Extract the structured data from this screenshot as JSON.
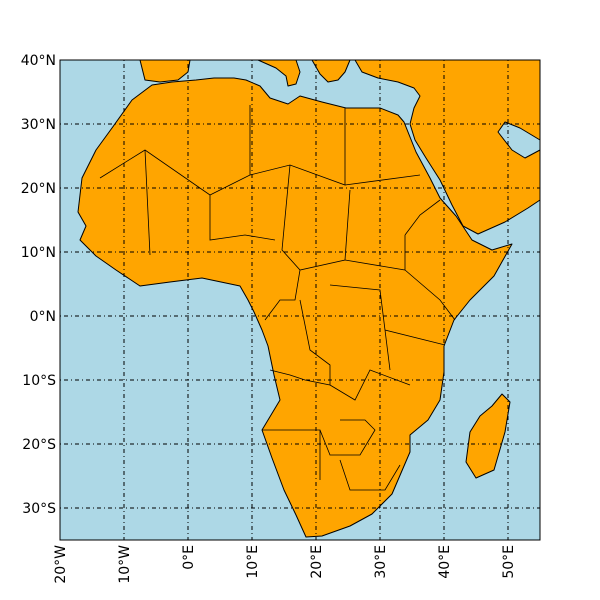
{
  "map": {
    "lon_range": [
      -20,
      55
    ],
    "lat_range": [
      -35,
      40
    ],
    "lat_ticks": [
      {
        "value": 40,
        "label": "40°N"
      },
      {
        "value": 30,
        "label": "30°N"
      },
      {
        "value": 20,
        "label": "20°N"
      },
      {
        "value": 10,
        "label": "10°N"
      },
      {
        "value": 0,
        "label": "0°N"
      },
      {
        "value": -10,
        "label": "10°S"
      },
      {
        "value": -20,
        "label": "20°S"
      },
      {
        "value": -30,
        "label": "30°S"
      }
    ],
    "lon_ticks": [
      {
        "value": -20,
        "label": "20°W"
      },
      {
        "value": -10,
        "label": "10°W"
      },
      {
        "value": 0,
        "label": "0°E"
      },
      {
        "value": 10,
        "label": "10°E"
      },
      {
        "value": 20,
        "label": "20°E"
      },
      {
        "value": 30,
        "label": "30°E"
      },
      {
        "value": 40,
        "label": "40°E"
      },
      {
        "value": 50,
        "label": "50°E"
      }
    ]
  }
}
